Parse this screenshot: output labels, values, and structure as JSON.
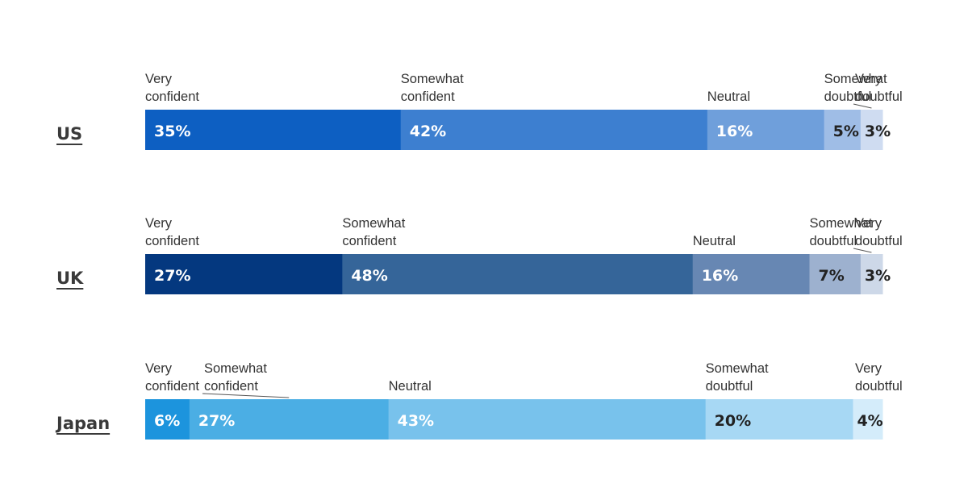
{
  "chart_data": {
    "type": "bar",
    "orientation": "horizontal",
    "stacked": true,
    "percent_stacked": true,
    "title": "",
    "xlabel": "",
    "ylabel": "",
    "grid": false,
    "legend": "none",
    "categories": [
      "US",
      "UK",
      "Japan"
    ],
    "segment_names": [
      "Very confident",
      "Somewhat confident",
      "Neutral",
      "Somewhat doubtful",
      "Very doubtful"
    ],
    "rows": [
      {
        "country": "US",
        "segments": [
          {
            "name": "Very confident",
            "value": 35,
            "label": "35%",
            "color": "#0d5fc2",
            "text_color": "#ffffff",
            "lines": [
              "Very",
              "confident"
            ]
          },
          {
            "name": "Somewhat confident",
            "value": 42,
            "label": "42%",
            "color": "#3d7fd0",
            "text_color": "#ffffff",
            "lines": [
              "Somewhat",
              "confident"
            ]
          },
          {
            "name": "Neutral",
            "value": 16,
            "label": "16%",
            "color": "#6f9fdb",
            "text_color": "#ffffff",
            "lines": [
              "Neutral"
            ]
          },
          {
            "name": "Somewhat doubtful",
            "value": 5,
            "label": "5%",
            "color": "#9fbde6",
            "text_color": "#222222",
            "lines": [
              "Somewhat",
              "doubtful"
            ]
          },
          {
            "name": "Very doubtful",
            "value": 3,
            "label": "3%",
            "color": "#cfdcf1",
            "text_color": "#222222",
            "lines": [
              "Very",
              "doubtful"
            ]
          }
        ]
      },
      {
        "country": "UK",
        "segments": [
          {
            "name": "Very confident",
            "value": 27,
            "label": "27%",
            "color": "#04387f",
            "text_color": "#ffffff",
            "lines": [
              "Very",
              "confident"
            ]
          },
          {
            "name": "Somewhat confident",
            "value": 48,
            "label": "48%",
            "color": "#356599",
            "text_color": "#ffffff",
            "lines": [
              "Somewhat",
              "confident"
            ]
          },
          {
            "name": "Neutral",
            "value": 16,
            "label": "16%",
            "color": "#6787b3",
            "text_color": "#ffffff",
            "lines": [
              "Neutral"
            ]
          },
          {
            "name": "Somewhat doubtful",
            "value": 7,
            "label": "7%",
            "color": "#9db1cf",
            "text_color": "#222222",
            "lines": [
              "Somewhat",
              "doubtful"
            ]
          },
          {
            "name": "Very doubtful",
            "value": 3,
            "label": "3%",
            "color": "#cdd8e8",
            "text_color": "#222222",
            "lines": [
              "Very",
              "doubtful"
            ]
          }
        ]
      },
      {
        "country": "Japan",
        "segments": [
          {
            "name": "Very confident",
            "value": 6,
            "label": "6%",
            "color": "#1c94dd",
            "text_color": "#ffffff",
            "lines": [
              "Very",
              "confident"
            ]
          },
          {
            "name": "Somewhat confident",
            "value": 27,
            "label": "27%",
            "color": "#4baee4",
            "text_color": "#ffffff",
            "lines": [
              "Somewhat",
              "confident"
            ]
          },
          {
            "name": "Neutral",
            "value": 43,
            "label": "43%",
            "color": "#78c2ec",
            "text_color": "#ffffff",
            "lines": [
              "Neutral"
            ]
          },
          {
            "name": "Somewhat doubtful",
            "value": 20,
            "label": "20%",
            "color": "#a7d8f4",
            "text_color": "#222222",
            "lines": [
              "Somewhat",
              "doubtful"
            ]
          },
          {
            "name": "Very doubtful",
            "value": 4,
            "label": "4%",
            "color": "#d4ecfa",
            "text_color": "#222222",
            "lines": [
              "Very",
              "doubtful"
            ]
          }
        ]
      }
    ]
  }
}
